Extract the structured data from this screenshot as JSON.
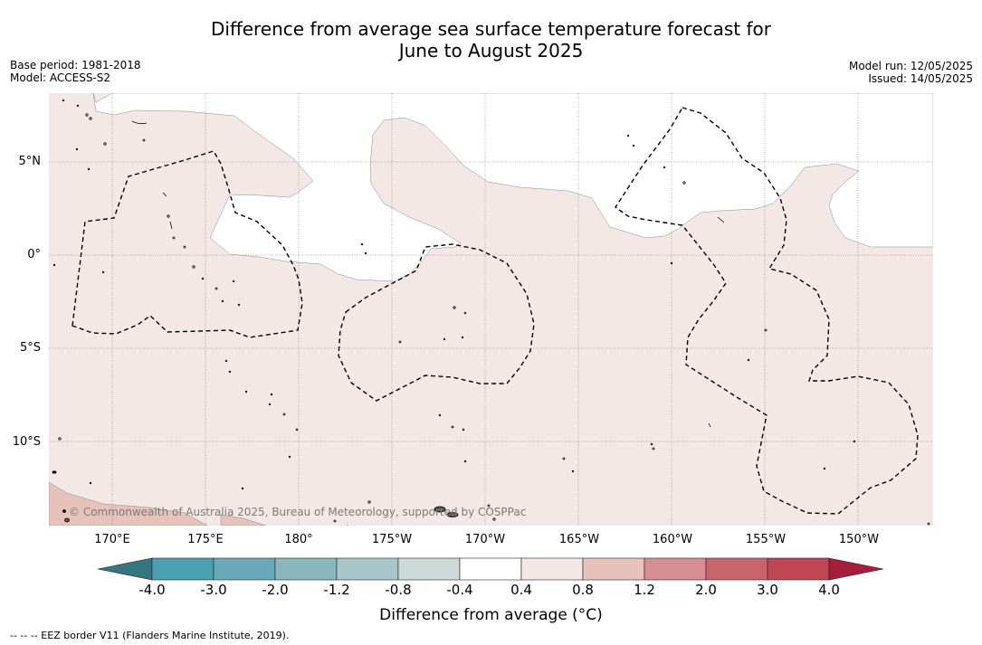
{
  "header": {
    "title_line1": "Difference from average sea surface temperature forecast for",
    "title_line2": "June to August 2025",
    "base_period": "Base period: 1981-2018",
    "model": "Model: ACCESS-S2",
    "model_run": "Model run: 12/05/2025",
    "issued": "Issued: 14/05/2025"
  },
  "map": {
    "lat_labels": [
      "5°N",
      "0°",
      "5°S",
      "10°S"
    ],
    "lon_labels": [
      "170°E",
      "175°E",
      "180°",
      "175°W",
      "170°W",
      "165°W",
      "160°W",
      "155°W",
      "150°W"
    ],
    "copyright": "© Commonwealth of Australia 2025, Bureau of Meteorology, supported by COSPPac",
    "ocean_fill": "#f4e8e6",
    "neutral_fill": "#ffffff",
    "warm_fill": "#e6c2bb",
    "eez_line_color": "#000000",
    "grid_color": "#555555"
  },
  "colorbar": {
    "ticks": [
      "-4.0",
      "-3.0",
      "-2.0",
      "-1.2",
      "-0.8",
      "-0.4",
      "0.4",
      "0.8",
      "1.2",
      "2.0",
      "3.0",
      "4.0"
    ],
    "colors": [
      "#36767e",
      "#4a9fb0",
      "#6aa8b8",
      "#8ab6c0",
      "#a9c7cb",
      "#cdd8d9",
      "#ffffff",
      "#f4e8e6",
      "#e6c2bb",
      "#d68e94",
      "#c8646c",
      "#be4655",
      "#a81d3c"
    ],
    "label": "Difference from average (°C)"
  },
  "footer": {
    "text": "--  --  -- EEZ border V11 (Flanders Marine Institute, 2019)."
  }
}
